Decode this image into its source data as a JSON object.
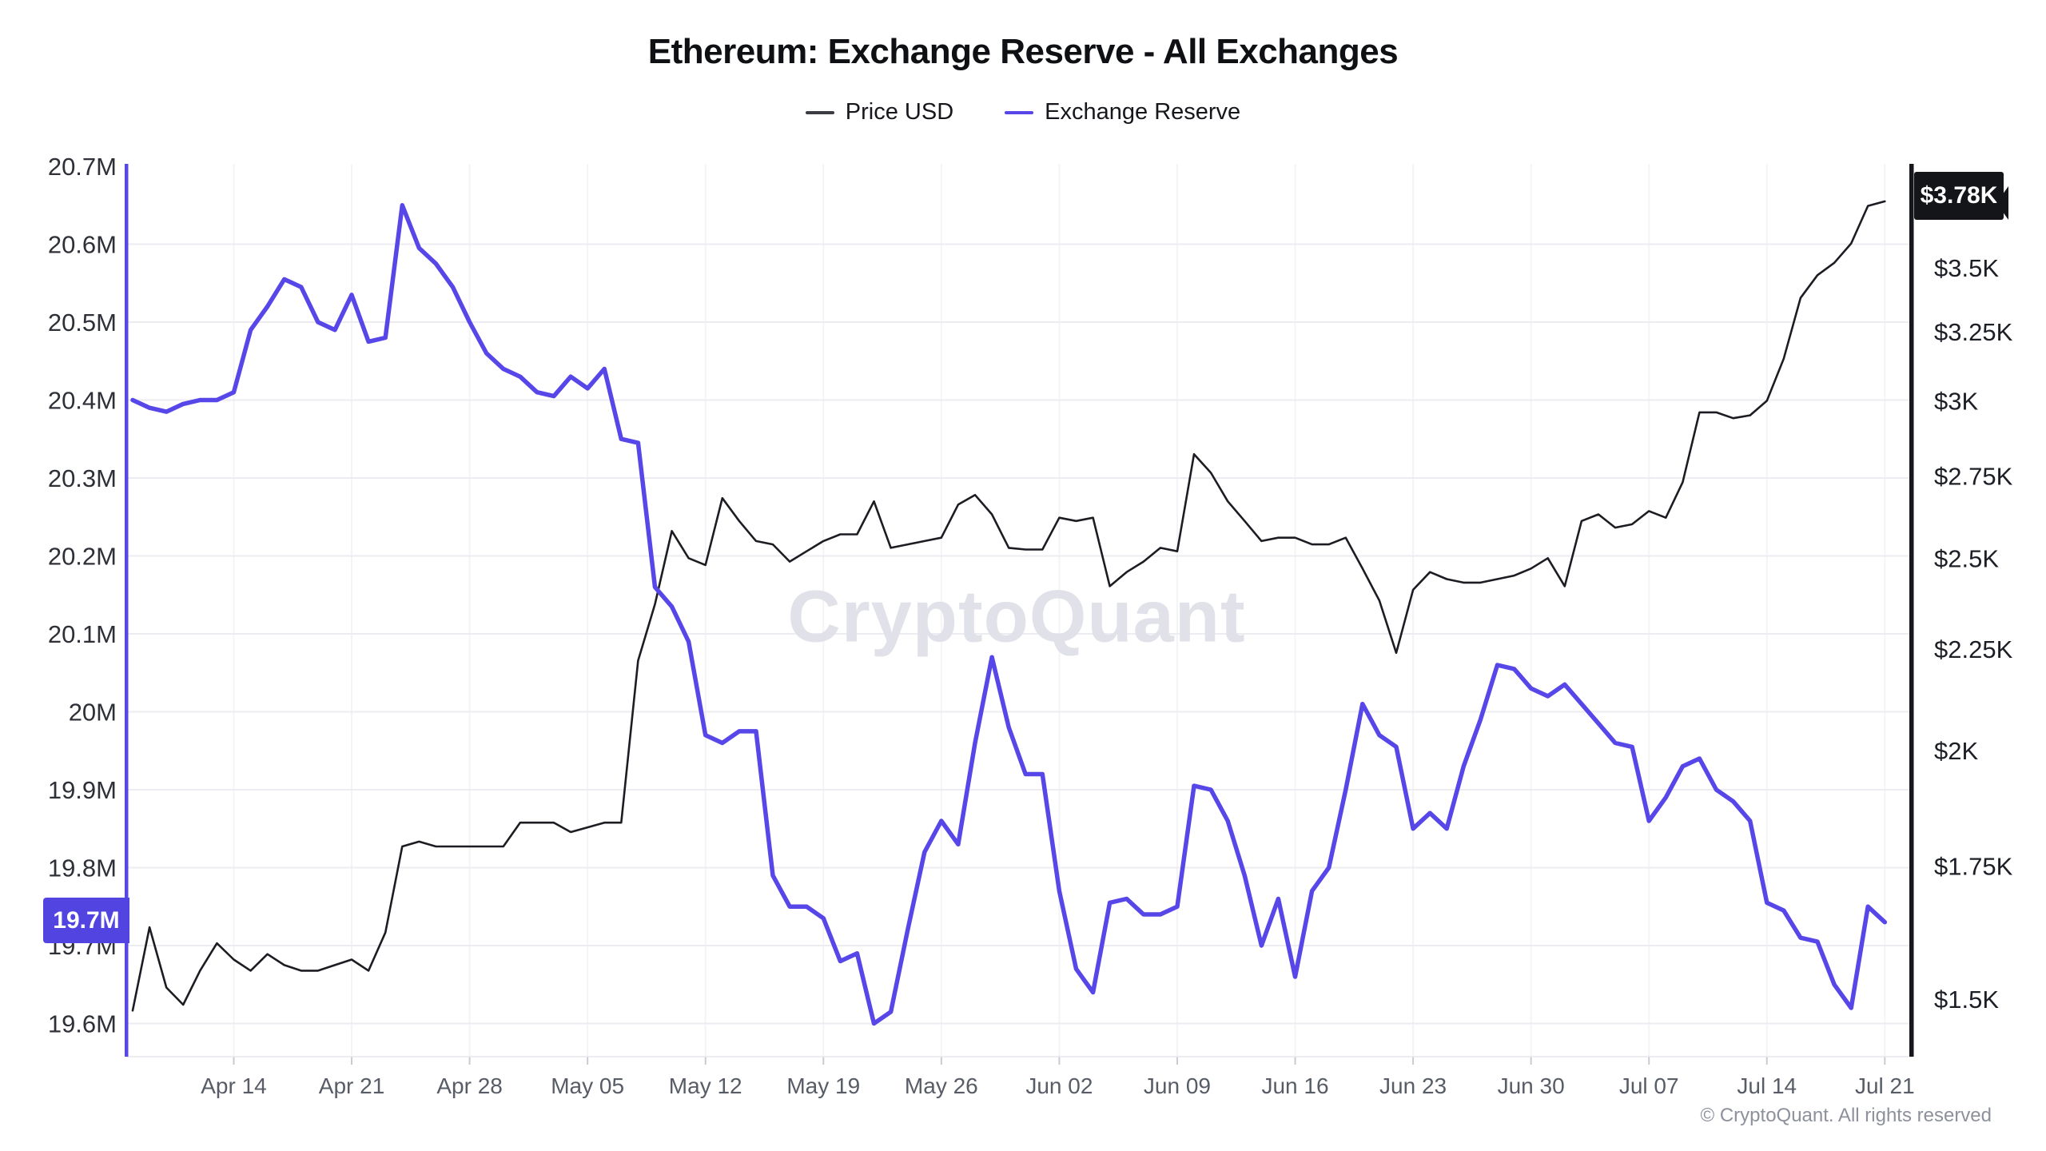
{
  "title": "Ethereum: Exchange Reserve - All Exchanges",
  "legend": {
    "items": [
      {
        "label": "Price USD",
        "color": "#3c3c44"
      },
      {
        "label": "Exchange Reserve",
        "color": "#5746e8"
      }
    ]
  },
  "badges": {
    "reserve_current": "19.7M",
    "price_current": "$3.78K"
  },
  "watermark": "CryptoQuant",
  "copyright": "© CryptoQuant. All rights reserved",
  "colors": {
    "reserve_line": "#5746e8",
    "price_line": "#1c1d22",
    "left_axis_line": "#5746e8",
    "right_axis_line": "#16171b",
    "gridline": "#ededf1",
    "vertical_gridline": "#f4f4f7",
    "tick": "#c9cbd3",
    "left_label": "#2e3038",
    "right_label": "#1d1f26",
    "x_label": "#575c66",
    "reserve_badge_bg": "#5244e0",
    "price_badge_bg": "#141519"
  },
  "left_axis": {
    "labels": [
      "20.7M",
      "20.6M",
      "20.5M",
      "20.4M",
      "20.3M",
      "20.2M",
      "20.1M",
      "20M",
      "19.9M",
      "19.8M",
      "19.7M",
      "19.6M"
    ],
    "values": [
      20.7,
      20.6,
      20.5,
      20.4,
      20.3,
      20.2,
      20.1,
      20.0,
      19.9,
      19.8,
      19.7,
      19.6
    ]
  },
  "right_axis": {
    "labels": [
      "$3.5K",
      "$3.25K",
      "$3K",
      "$2.75K",
      "$2.5K",
      "$2.25K",
      "$2K",
      "$1.75K",
      "$1.5K"
    ],
    "values": [
      3.5,
      3.25,
      3.0,
      2.75,
      2.5,
      2.25,
      2.0,
      1.75,
      1.5
    ]
  },
  "x_axis": {
    "labels": [
      "Apr 14",
      "Apr 21",
      "Apr 28",
      "May 05",
      "May 12",
      "May 19",
      "May 26",
      "Jun 02",
      "Jun 09",
      "Jun 16",
      "Jun 23",
      "Jun 30",
      "Jul 07",
      "Jul 14",
      "Jul 21"
    ]
  },
  "chart_data": {
    "type": "line",
    "title": "Ethereum: Exchange Reserve - All Exchanges",
    "x": [
      "Apr 8",
      "Apr 9",
      "Apr 10",
      "Apr 11",
      "Apr 12",
      "Apr 13",
      "Apr 14",
      "Apr 15",
      "Apr 16",
      "Apr 17",
      "Apr 18",
      "Apr 19",
      "Apr 20",
      "Apr 21",
      "Apr 22",
      "Apr 23",
      "Apr 24",
      "Apr 25",
      "Apr 26",
      "Apr 27",
      "Apr 28",
      "Apr 29",
      "Apr 30",
      "May 1",
      "May 2",
      "May 3",
      "May 4",
      "May 5",
      "May 6",
      "May 7",
      "May 8",
      "May 9",
      "May 10",
      "May 11",
      "May 12",
      "May 13",
      "May 14",
      "May 15",
      "May 16",
      "May 17",
      "May 18",
      "May 19",
      "May 20",
      "May 21",
      "May 22",
      "May 23",
      "May 24",
      "May 25",
      "May 26",
      "May 27",
      "May 28",
      "May 29",
      "May 30",
      "May 31",
      "Jun 1",
      "Jun 2",
      "Jun 3",
      "Jun 4",
      "Jun 5",
      "Jun 6",
      "Jun 7",
      "Jun 8",
      "Jun 9",
      "Jun 10",
      "Jun 11",
      "Jun 12",
      "Jun 13",
      "Jun 14",
      "Jun 15",
      "Jun 16",
      "Jun 17",
      "Jun 18",
      "Jun 19",
      "Jun 20",
      "Jun 21",
      "Jun 22",
      "Jun 23",
      "Jun 24",
      "Jun 25",
      "Jun 26",
      "Jun 27",
      "Jun 28",
      "Jun 29",
      "Jun 30",
      "Jul 1",
      "Jul 2",
      "Jul 3",
      "Jul 4",
      "Jul 5",
      "Jul 6",
      "Jul 7",
      "Jul 8",
      "Jul 9",
      "Jul 10",
      "Jul 11",
      "Jul 12",
      "Jul 13",
      "Jul 14",
      "Jul 15",
      "Jul 16",
      "Jul 17",
      "Jul 18",
      "Jul 19",
      "Jul 20",
      "Jul 21"
    ],
    "series": [
      {
        "name": "Exchange Reserve",
        "axis": "left",
        "unit": "M",
        "values": [
          20.4,
          20.39,
          20.385,
          20.395,
          20.4,
          20.4,
          20.41,
          20.49,
          20.52,
          20.555,
          20.545,
          20.5,
          20.49,
          20.535,
          20.475,
          20.48,
          20.65,
          20.595,
          20.575,
          20.545,
          20.5,
          20.46,
          20.44,
          20.43,
          20.41,
          20.405,
          20.43,
          20.415,
          20.44,
          20.35,
          20.345,
          20.16,
          20.135,
          20.09,
          19.97,
          19.96,
          19.975,
          19.975,
          19.79,
          19.75,
          19.75,
          19.735,
          19.68,
          19.69,
          19.6,
          19.615,
          19.72,
          19.82,
          19.86,
          19.83,
          19.96,
          20.07,
          19.98,
          19.92,
          19.92,
          19.77,
          19.67,
          19.64,
          19.755,
          19.76,
          19.74,
          19.74,
          19.75,
          19.905,
          19.9,
          19.86,
          19.79,
          19.7,
          19.76,
          19.66,
          19.77,
          19.8,
          19.9,
          20.01,
          19.97,
          19.955,
          19.85,
          19.87,
          19.85,
          19.93,
          19.99,
          20.06,
          20.055,
          20.03,
          20.02,
          20.035,
          20.01,
          19.985,
          19.96,
          19.955,
          19.86,
          19.89,
          19.93,
          19.94,
          19.9,
          19.885,
          19.86,
          19.755,
          19.745,
          19.71,
          19.705,
          19.65,
          19.62,
          19.75,
          19.73
        ]
      },
      {
        "name": "Price USD",
        "axis": "right",
        "unit": "K USD",
        "values": [
          1.48,
          1.63,
          1.52,
          1.49,
          1.55,
          1.6,
          1.57,
          1.55,
          1.58,
          1.56,
          1.55,
          1.55,
          1.56,
          1.57,
          1.55,
          1.62,
          1.79,
          1.8,
          1.79,
          1.79,
          1.79,
          1.79,
          1.79,
          1.84,
          1.84,
          1.84,
          1.82,
          1.83,
          1.84,
          1.84,
          2.22,
          2.37,
          2.58,
          2.5,
          2.48,
          2.68,
          2.61,
          2.55,
          2.54,
          2.49,
          2.52,
          2.55,
          2.57,
          2.57,
          2.67,
          2.53,
          2.54,
          2.55,
          2.56,
          2.66,
          2.69,
          2.63,
          2.53,
          2.525,
          2.525,
          2.62,
          2.61,
          2.62,
          2.42,
          2.46,
          2.49,
          2.53,
          2.52,
          2.82,
          2.76,
          2.67,
          2.61,
          2.55,
          2.56,
          2.56,
          2.54,
          2.54,
          2.56,
          2.47,
          2.38,
          2.24,
          2.41,
          2.46,
          2.44,
          2.43,
          2.43,
          2.44,
          2.45,
          2.47,
          2.5,
          2.42,
          2.61,
          2.63,
          2.59,
          2.6,
          2.64,
          2.62,
          2.73,
          2.96,
          2.96,
          2.94,
          2.95,
          3.0,
          3.15,
          3.38,
          3.47,
          3.52,
          3.6,
          3.76,
          3.78
        ]
      }
    ],
    "left_axis_range": [
      19.557,
      20.7
    ],
    "right_axis_scale": "log",
    "right_axis_ticks": [
      3.5,
      3.25,
      3.0,
      2.75,
      2.5,
      2.25,
      2.0,
      1.75,
      1.5
    ],
    "grid": "horizontal-major, faint weekly vertical",
    "legend_position": "top-center"
  }
}
